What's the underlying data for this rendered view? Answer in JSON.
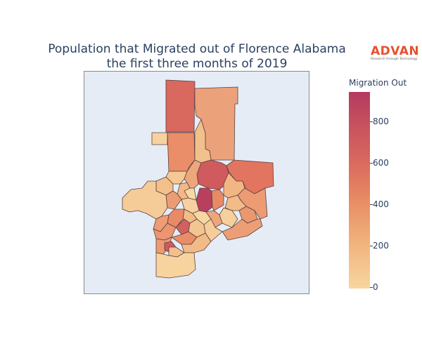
{
  "title": {
    "line1": "Population that Migrated out of Florence Alabama",
    "line2": "the first three months of 2019"
  },
  "logo": {
    "brand": "ADVAN",
    "tagline": "Research through Technology",
    "color": "#e8512f"
  },
  "colorbar": {
    "title": "Migration Out",
    "ticks": [
      "0",
      "200",
      "400",
      "600",
      "800"
    ],
    "colors": [
      "#f8d5a0",
      "#f0b07a",
      "#e88b64",
      "#d9685e",
      "#c8535e",
      "#b43a5f"
    ],
    "range": [
      0,
      950
    ]
  },
  "map": {
    "background": "#e5ecf6",
    "border": "#5a5a5a",
    "region_count": 46
  }
}
